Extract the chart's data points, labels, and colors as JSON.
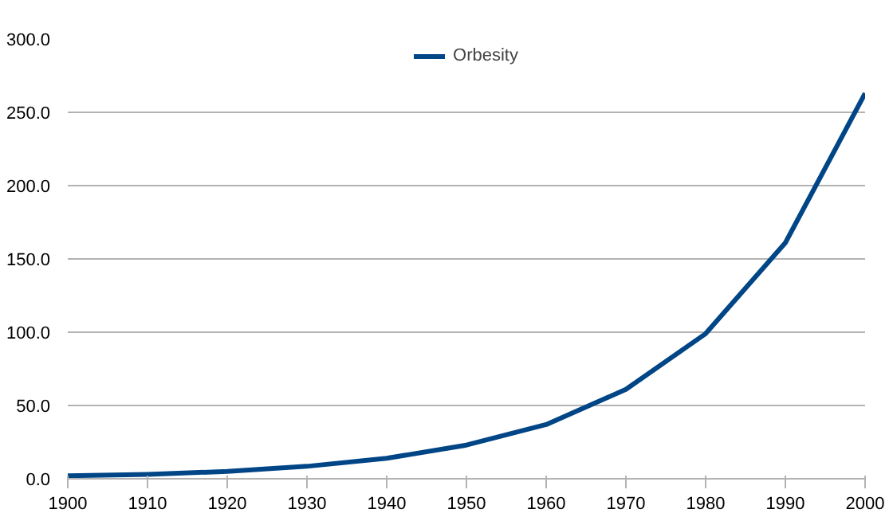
{
  "chart_data": {
    "type": "line",
    "categories": [
      "1900",
      "1910",
      "1920",
      "1930",
      "1940",
      "1950",
      "1960",
      "1970",
      "1980",
      "1990",
      "2000"
    ],
    "series": [
      {
        "name": "Orbesity",
        "color": "#004586",
        "values": [
          2,
          3,
          5,
          8.5,
          14,
          23,
          37,
          61,
          99,
          161,
          263
        ]
      }
    ],
    "ylim": [
      0,
      300
    ],
    "yticks": [
      {
        "value": 0,
        "label": "0.0"
      },
      {
        "value": 50,
        "label": "50.0"
      },
      {
        "value": 100,
        "label": "100.0"
      },
      {
        "value": 150,
        "label": "150.0"
      },
      {
        "value": 200,
        "label": "200.0"
      },
      {
        "value": 250,
        "label": "250.0"
      },
      {
        "value": 300,
        "label": "300.0"
      }
    ],
    "grid": "y",
    "legend": "top",
    "marker": "none",
    "line_style": "solid"
  }
}
